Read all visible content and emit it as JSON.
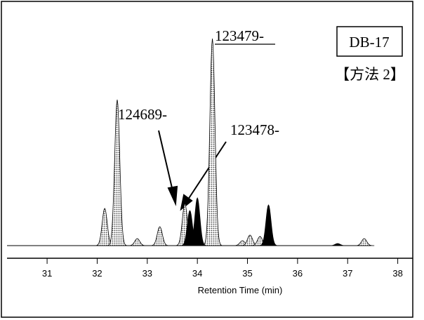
{
  "chart_data": {
    "type": "chromatogram",
    "xlabel": "Retention Time (min)",
    "xlim": [
      30.2,
      38.3
    ],
    "xticks": [
      31,
      32,
      33,
      34,
      35,
      36,
      37,
      38
    ],
    "ylim": [
      0,
      300
    ],
    "series": [
      {
        "name": "stippled",
        "color": "#b8b8b8",
        "x": [
          32.15,
          32.4,
          32.8,
          33.25,
          33.75,
          34.3,
          34.9,
          35.05,
          35.25,
          37.33
        ],
        "values": [
          53,
          208,
          10,
          27,
          60,
          295,
          7,
          15,
          13,
          10
        ]
      },
      {
        "name": "black",
        "color": "#000000",
        "x": [
          33.85,
          34.0,
          35.42,
          36.8
        ],
        "values": [
          50,
          68,
          58,
          3
        ]
      }
    ],
    "annotations": [
      "123479-",
      "124689-",
      "123478-",
      "DB-17",
      "【方法 2】"
    ]
  }
}
